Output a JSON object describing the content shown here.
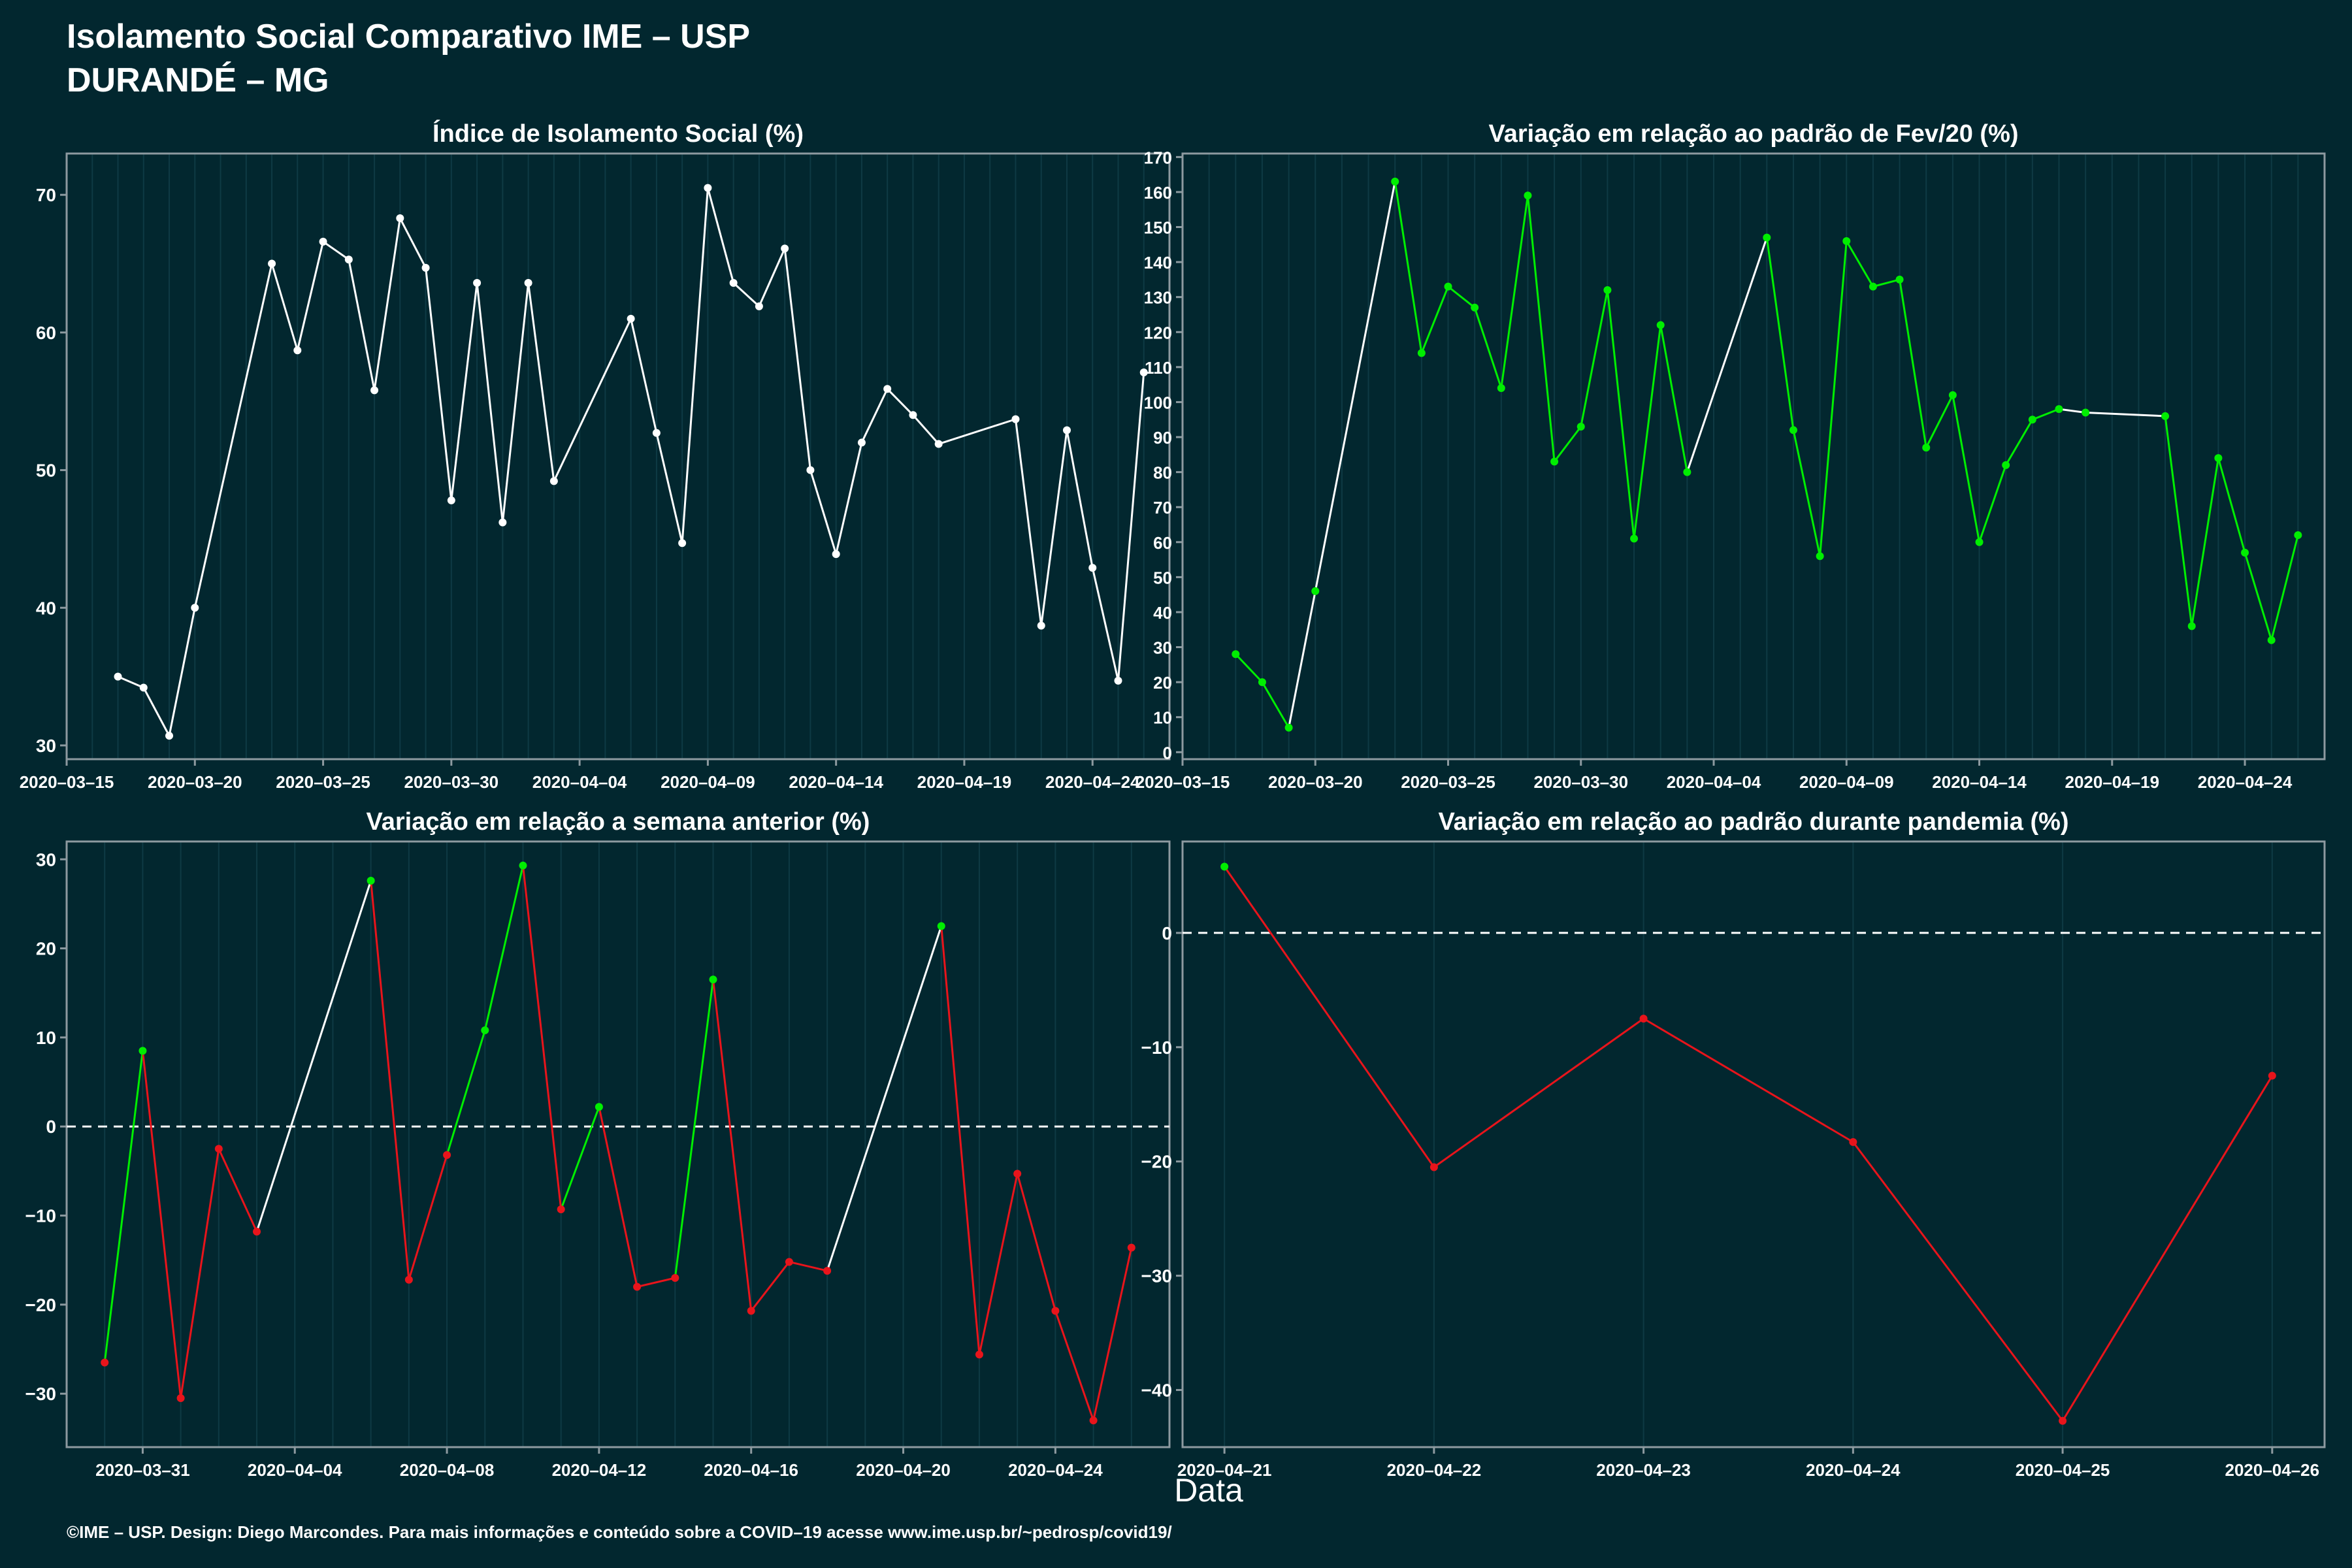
{
  "header": {
    "title_line1": "Isolamento Social Comparativo IME – USP",
    "title_line2": "DURANDÉ – MG"
  },
  "footer": {
    "x_axis_label": "Data",
    "credit": "©IME – USP. Design: Diego Marcondes. Para mais informações e conteúdo sobre a COVID–19 acesse www.ime.usp.br/~pedrosp/covid19/"
  },
  "colors": {
    "background": "#02272f",
    "white": "#ffffff",
    "green": "#00ee00",
    "red": "#e8141b",
    "axis": "#8d9aa0"
  },
  "chart_data": [
    {
      "type": "line",
      "title": "Índice de Isolamento Social (%)",
      "xlim": [
        "2020-03-15",
        "2020-04-27"
      ],
      "ylim": [
        29,
        73
      ],
      "yticks": [
        30,
        40,
        50,
        60,
        70
      ],
      "xtick_labels": [
        "2020–03–15",
        "2020–03–20",
        "2020–03–25",
        "2020–03–30",
        "2020–04–04",
        "2020–04–09",
        "2020–04–14",
        "2020–04–19",
        "2020–04–24"
      ],
      "xtick_dates": [
        "2020-03-15",
        "2020-03-20",
        "2020-03-25",
        "2020-03-30",
        "2020-04-04",
        "2020-04-09",
        "2020-04-14",
        "2020-04-19",
        "2020-04-24"
      ],
      "series": [
        {
          "color": "#ffffff",
          "x": [
            "2020-03-17",
            "2020-03-18",
            "2020-03-19",
            "2020-03-20",
            "2020-03-23",
            "2020-03-24",
            "2020-03-25",
            "2020-03-26",
            "2020-03-27",
            "2020-03-28",
            "2020-03-29",
            "2020-03-30",
            "2020-03-31",
            "2020-04-01",
            "2020-04-02",
            "2020-04-03",
            "2020-04-06",
            "2020-04-07",
            "2020-04-08",
            "2020-04-09",
            "2020-04-10",
            "2020-04-11",
            "2020-04-12",
            "2020-04-13",
            "2020-04-14",
            "2020-04-15",
            "2020-04-16",
            "2020-04-17",
            "2020-04-18",
            "2020-04-21",
            "2020-04-22",
            "2020-04-23",
            "2020-04-24",
            "2020-04-25",
            "2020-04-26"
          ],
          "y": [
            35.0,
            34.2,
            30.7,
            40.0,
            65.0,
            58.7,
            66.6,
            65.3,
            55.8,
            68.3,
            64.7,
            47.8,
            63.6,
            46.2,
            63.6,
            49.2,
            61.0,
            52.7,
            44.7,
            70.5,
            63.6,
            61.9,
            66.1,
            50.0,
            43.9,
            52.0,
            55.9,
            54.0,
            51.9,
            53.7,
            38.7,
            52.9,
            42.9,
            34.7,
            57.1
          ]
        }
      ]
    },
    {
      "type": "line",
      "title": "Variação em relação ao padrão de Fev/20 (%)",
      "xlim": [
        "2020-03-15",
        "2020-04-27"
      ],
      "ylim": [
        -2,
        171
      ],
      "yticks": [
        0,
        10,
        20,
        30,
        40,
        50,
        60,
        70,
        80,
        90,
        100,
        110,
        120,
        130,
        140,
        150,
        160,
        170
      ],
      "xtick_labels": [
        "2020–03–15",
        "2020–03–20",
        "2020–03–25",
        "2020–03–30",
        "2020–04–04",
        "2020–04–09",
        "2020–04–14",
        "2020–04–19",
        "2020–04–24"
      ],
      "xtick_dates": [
        "2020-03-15",
        "2020-03-20",
        "2020-03-25",
        "2020-03-30",
        "2020-04-04",
        "2020-04-09",
        "2020-04-14",
        "2020-04-19",
        "2020-04-24"
      ],
      "series": [
        {
          "segment_colors": "increase-to-higher-white",
          "x": [
            "2020-03-17",
            "2020-03-18",
            "2020-03-19",
            "2020-03-20",
            "2020-03-23",
            "2020-03-24",
            "2020-03-25",
            "2020-03-26",
            "2020-03-27",
            "2020-03-28",
            "2020-03-29",
            "2020-03-30",
            "2020-03-31",
            "2020-04-01",
            "2020-04-02",
            "2020-04-03",
            "2020-04-06",
            "2020-04-07",
            "2020-04-08",
            "2020-04-09",
            "2020-04-10",
            "2020-04-11",
            "2020-04-12",
            "2020-04-13",
            "2020-04-14",
            "2020-04-15",
            "2020-04-16",
            "2020-04-17",
            "2020-04-18",
            "2020-04-21",
            "2020-04-22",
            "2020-04-23",
            "2020-04-24",
            "2020-04-25",
            "2020-04-26"
          ],
          "y": [
            28,
            20,
            7,
            46,
            163,
            114,
            133,
            127,
            104,
            159,
            83,
            93,
            132,
            61,
            122,
            80,
            147,
            92,
            56,
            146,
            133,
            135,
            87,
            102,
            60,
            82,
            95,
            98,
            97,
            96,
            36,
            84,
            57,
            32,
            62
          ],
          "point_color": "#00ee00",
          "line_colors": [
            "#00ee00",
            "#00ee00",
            "#ffffff",
            "#ffffff",
            "#00ee00",
            "#00ee00",
            "#00ee00",
            "#00ee00",
            "#00ee00",
            "#00ee00",
            "#00ee00",
            "#00ee00",
            "#00ee00",
            "#00ee00",
            "#00ee00",
            "#ffffff",
            "#00ee00",
            "#00ee00",
            "#00ee00",
            "#00ee00",
            "#00ee00",
            "#00ee00",
            "#00ee00",
            "#00ee00",
            "#00ee00",
            "#00ee00",
            "#00ee00",
            "#ffffff",
            "#ffffff",
            "#00ee00",
            "#00ee00",
            "#00ee00",
            "#00ee00",
            "#00ee00"
          ]
        }
      ]
    },
    {
      "type": "line",
      "title": "Variação em relação a semana anterior (%)",
      "xlim": [
        "2020-03-29",
        "2020-04-27"
      ],
      "ylim": [
        -36,
        32
      ],
      "yticks": [
        -30,
        -20,
        -10,
        0,
        10,
        20,
        30
      ],
      "ytick_labels": [
        "−30",
        "−20",
        "−10",
        "0",
        "10",
        "20",
        "30"
      ],
      "reference_line": 0,
      "xtick_labels": [
        "2020–03–31",
        "2020–04–04",
        "2020–04–08",
        "2020–04–12",
        "2020–04–16",
        "2020–04–20",
        "2020–04–24"
      ],
      "xtick_dates": [
        "2020-03-31",
        "2020-04-04",
        "2020-04-08",
        "2020-04-12",
        "2020-04-16",
        "2020-04-20",
        "2020-04-24"
      ],
      "series": [
        {
          "x": [
            "2020-03-30",
            "2020-03-31",
            "2020-04-01",
            "2020-04-02",
            "2020-04-03",
            "2020-04-06",
            "2020-04-07",
            "2020-04-08",
            "2020-04-09",
            "2020-04-10",
            "2020-04-11",
            "2020-04-12",
            "2020-04-13",
            "2020-04-14",
            "2020-04-15",
            "2020-04-16",
            "2020-04-17",
            "2020-04-18",
            "2020-04-21",
            "2020-04-22",
            "2020-04-23",
            "2020-04-24",
            "2020-04-25",
            "2020-04-26"
          ],
          "y": [
            -26.5,
            8.5,
            -30.5,
            -2.5,
            -11.8,
            27.6,
            -17.2,
            -3.2,
            10.8,
            29.3,
            -9.3,
            2.2,
            -18.0,
            -17.0,
            16.5,
            -20.7,
            -15.2,
            -16.2,
            22.5,
            -25.6,
            -5.3,
            -20.7,
            -33.0,
            -13.6
          ],
          "point_colors": [
            "#e8141b",
            "#00ee00",
            "#e8141b",
            "#e8141b",
            "#e8141b",
            "#00ee00",
            "#e8141b",
            "#e8141b",
            "#00ee00",
            "#00ee00",
            "#e8141b",
            "#00ee00",
            "#e8141b",
            "#e8141b",
            "#00ee00",
            "#e8141b",
            "#e8141b",
            "#e8141b",
            "#00ee00",
            "#e8141b",
            "#e8141b",
            "#e8141b",
            "#e8141b",
            "#e8141b"
          ],
          "line_colors": [
            "#00ee00",
            "#e8141b",
            "#e8141b",
            "#e8141b",
            "#ffffff",
            "#e8141b",
            "#e8141b",
            "#00ee00",
            "#00ee00",
            "#e8141b",
            "#00ee00",
            "#e8141b",
            "#e8141b",
            "#00ee00",
            "#e8141b",
            "#e8141b",
            "#e8141b",
            "#ffffff",
            "#e8141b",
            "#e8141b",
            "#e8141b",
            "#e8141b",
            "#e8141b"
          ]
        }
      ]
    },
    {
      "type": "line",
      "title": "Variação em relação ao padrão durante pandemia (%)",
      "xlim": [
        "2020-04-20.8",
        "2020-04-26.25"
      ],
      "ylim": [
        -45,
        8
      ],
      "yticks": [
        -40,
        -30,
        -20,
        -10,
        0
      ],
      "ytick_labels": [
        "−40",
        "−30",
        "−20",
        "−10",
        "0"
      ],
      "reference_line": 0,
      "xtick_labels": [
        "2020–04–21",
        "2020–04–22",
        "2020–04–23",
        "2020–04–24",
        "2020–04–25",
        "2020–04–26"
      ],
      "xtick_dates": [
        "2020-04-21",
        "2020-04-22",
        "2020-04-23",
        "2020-04-24",
        "2020-04-25",
        "2020-04-26"
      ],
      "series": [
        {
          "x": [
            "2020-04-21",
            "2020-04-22",
            "2020-04-23",
            "2020-04-24",
            "2020-04-25",
            "2020-04-26"
          ],
          "y": [
            5.8,
            -20.5,
            -7.5,
            -18.3,
            -42.7,
            -12.5
          ],
          "point_colors": [
            "#00ee00",
            "#e8141b",
            "#e8141b",
            "#e8141b",
            "#e8141b",
            "#e8141b"
          ],
          "line_colors": [
            "#e8141b",
            "#e8141b",
            "#e8141b",
            "#e8141b",
            "#e8141b"
          ]
        }
      ]
    }
  ]
}
